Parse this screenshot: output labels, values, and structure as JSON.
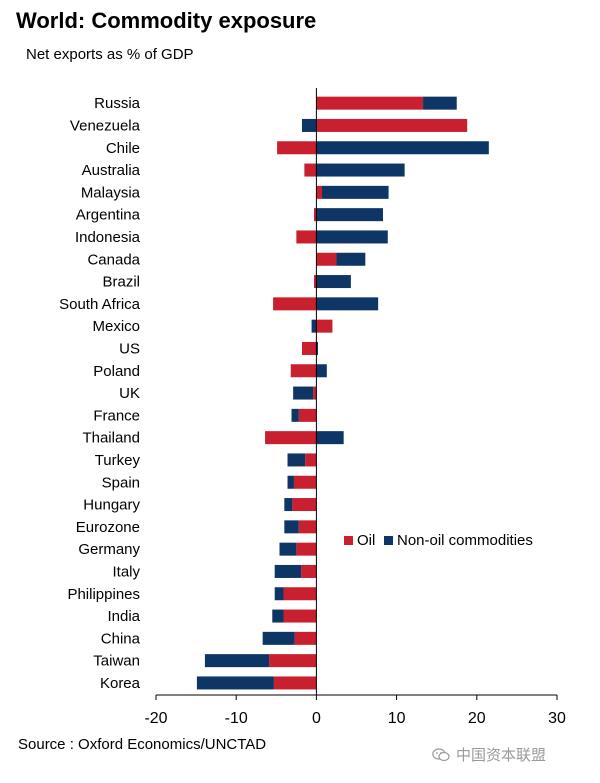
{
  "title": "World: Commodity exposure",
  "subtitle": "Net exports as % of GDP",
  "source": "Source : Oxford Economics/UNCTAD",
  "watermark": "中国资本联盟",
  "colors": {
    "oil": "#c8202e",
    "non_oil": "#0d3566",
    "axis": "#000000"
  },
  "chart_data": {
    "type": "bar",
    "orientation": "horizontal",
    "stacking": "diverging-stacked",
    "title": "World: Commodity exposure",
    "xlabel": "Net exports as % of GDP",
    "ylabel": "",
    "xlim": [
      -20,
      30
    ],
    "xticks": [
      -20,
      -10,
      0,
      10,
      20,
      30
    ],
    "grid": false,
    "legend_position": "lower-right",
    "categories": [
      "Russia",
      "Venezuela",
      "Chile",
      "Australia",
      "Malaysia",
      "Argentina",
      "Indonesia",
      "Canada",
      "Brazil",
      "South Africa",
      "Mexico",
      "US",
      "Poland",
      "UK",
      "France",
      "Thailand",
      "Turkey",
      "Spain",
      "Hungary",
      "Eurozone",
      "Germany",
      "Italy",
      "Philippines",
      "India",
      "China",
      "Taiwan",
      "Korea"
    ],
    "series": [
      {
        "name": "Oil",
        "values": [
          13.3,
          18.8,
          -4.9,
          -1.5,
          0.7,
          -0.3,
          -2.5,
          2.5,
          -0.3,
          -5.4,
          2.0,
          -1.8,
          -3.2,
          -0.4,
          -2.2,
          -6.4,
          -1.4,
          -2.8,
          -3.0,
          -2.2,
          -2.5,
          -1.9,
          -4.1,
          -4.1,
          -2.7,
          -5.9,
          -5.3
        ]
      },
      {
        "name": "Non-oil commodities",
        "values": [
          4.2,
          -1.8,
          21.5,
          11.0,
          8.3,
          8.3,
          8.9,
          3.6,
          4.3,
          7.7,
          -0.6,
          0.2,
          1.3,
          -2.5,
          -0.9,
          3.4,
          -2.2,
          -0.8,
          -1.0,
          -1.8,
          -2.1,
          -3.3,
          -1.1,
          -1.4,
          -4.0,
          -8.0,
          -9.6
        ]
      }
    ]
  }
}
